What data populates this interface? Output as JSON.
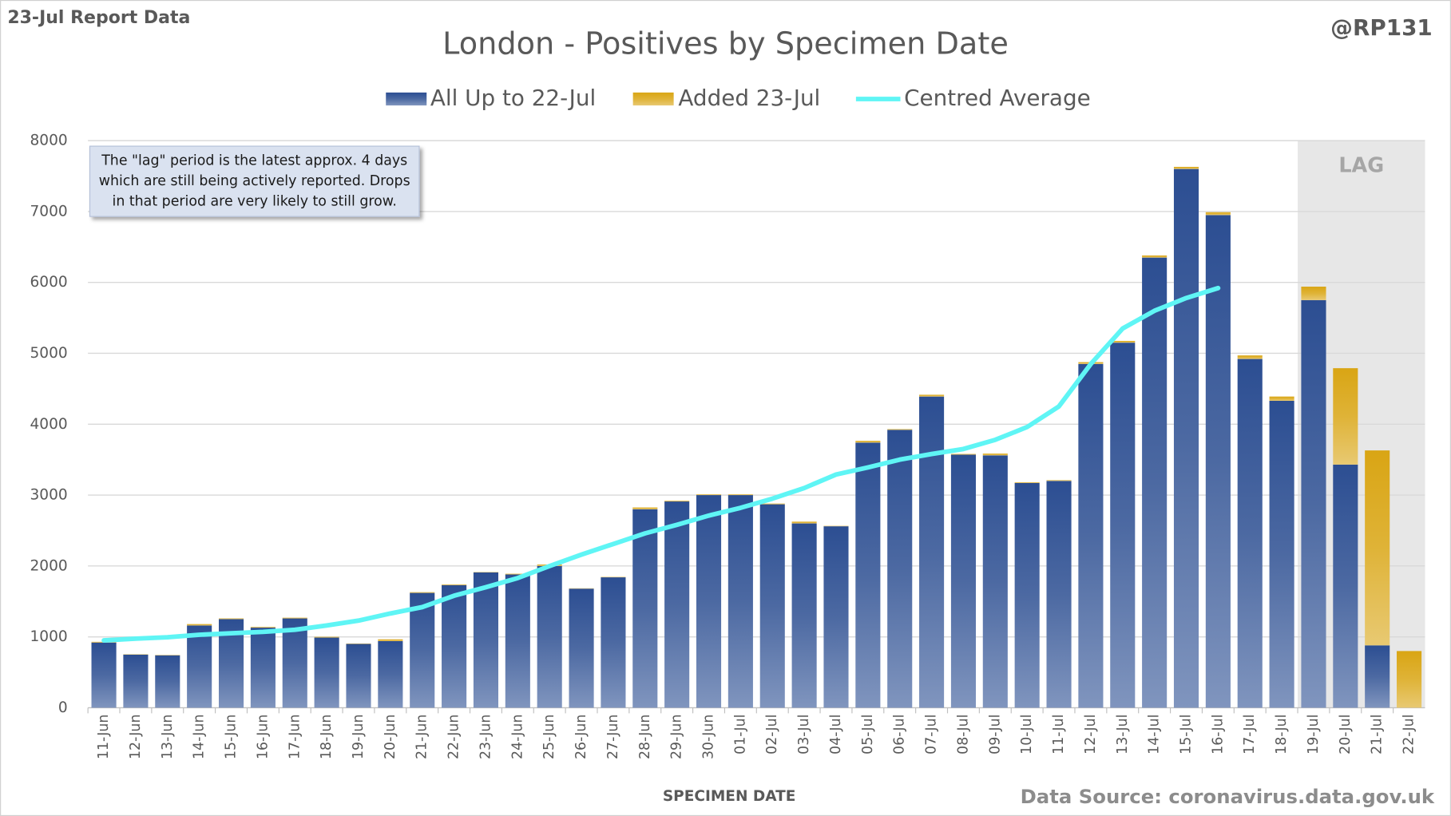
{
  "report_label": "23-Jul Report Data",
  "author": "@RP131",
  "source": "Data Source: coronavirus.data.gov.uk",
  "chart_data": {
    "type": "bar",
    "stacked": true,
    "title": "London - Positives by Specimen Date",
    "x_label": "SPECIMEN DATE",
    "annotation": [
      "The \"lag\" period is the latest approx. 4 days",
      "which are still being actively reported.  Drops",
      "in that period are very likely to still grow."
    ],
    "lag_label": "LAG",
    "lag_start": "19-Jul",
    "categories": [
      "11-Jun",
      "12-Jun",
      "13-Jun",
      "14-Jun",
      "15-Jun",
      "16-Jun",
      "17-Jun",
      "18-Jun",
      "19-Jun",
      "20-Jun",
      "21-Jun",
      "22-Jun",
      "23-Jun",
      "24-Jun",
      "25-Jun",
      "26-Jun",
      "27-Jun",
      "28-Jun",
      "29-Jun",
      "30-Jun",
      "01-Jul",
      "02-Jul",
      "03-Jul",
      "04-Jul",
      "05-Jul",
      "06-Jul",
      "07-Jul",
      "08-Jul",
      "09-Jul",
      "10-Jul",
      "11-Jul",
      "12-Jul",
      "13-Jul",
      "14-Jul",
      "15-Jul",
      "16-Jul",
      "17-Jul",
      "18-Jul",
      "19-Jul",
      "20-Jul",
      "21-Jul",
      "22-Jul"
    ],
    "series": [
      {
        "name": "All Up to 22-Jul",
        "color": "#2c4e92",
        "type": "bar",
        "values": [
          920,
          750,
          740,
          1160,
          1250,
          1130,
          1260,
          990,
          900,
          940,
          1620,
          1730,
          1910,
          1880,
          2000,
          1680,
          1840,
          2800,
          2910,
          3000,
          3000,
          2870,
          2600,
          2560,
          3740,
          3920,
          4390,
          3570,
          3560,
          3170,
          3200,
          4850,
          5150,
          6350,
          7600,
          6950,
          4920,
          4330,
          5750,
          3430,
          880,
          0
        ]
      },
      {
        "name": "Added 23-Jul",
        "color": "#d9a514",
        "type": "bar",
        "values": [
          10,
          5,
          5,
          20,
          10,
          10,
          10,
          10,
          5,
          25,
          10,
          10,
          5,
          10,
          20,
          5,
          5,
          25,
          10,
          10,
          10,
          10,
          25,
          5,
          25,
          10,
          25,
          10,
          25,
          10,
          10,
          25,
          25,
          30,
          30,
          40,
          50,
          60,
          190,
          1360,
          2750,
          800
        ]
      },
      {
        "name": "Centred Average",
        "color": "#5ff5f5",
        "type": "line",
        "values": [
          950,
          975,
          995,
          1030,
          1050,
          1070,
          1100,
          1160,
          1230,
          1330,
          1420,
          1580,
          1700,
          1830,
          2000,
          2160,
          2310,
          2460,
          2580,
          2710,
          2820,
          2950,
          3100,
          3290,
          3390,
          3500,
          3580,
          3650,
          3780,
          3960,
          4250,
          4850,
          5350,
          5600,
          5780,
          5920,
          null,
          null,
          null,
          null,
          null,
          null
        ]
      }
    ],
    "ylim": [
      0,
      8000
    ],
    "yticks": [
      0,
      1000,
      2000,
      3000,
      4000,
      5000,
      6000,
      7000,
      8000
    ],
    "grid": true
  }
}
